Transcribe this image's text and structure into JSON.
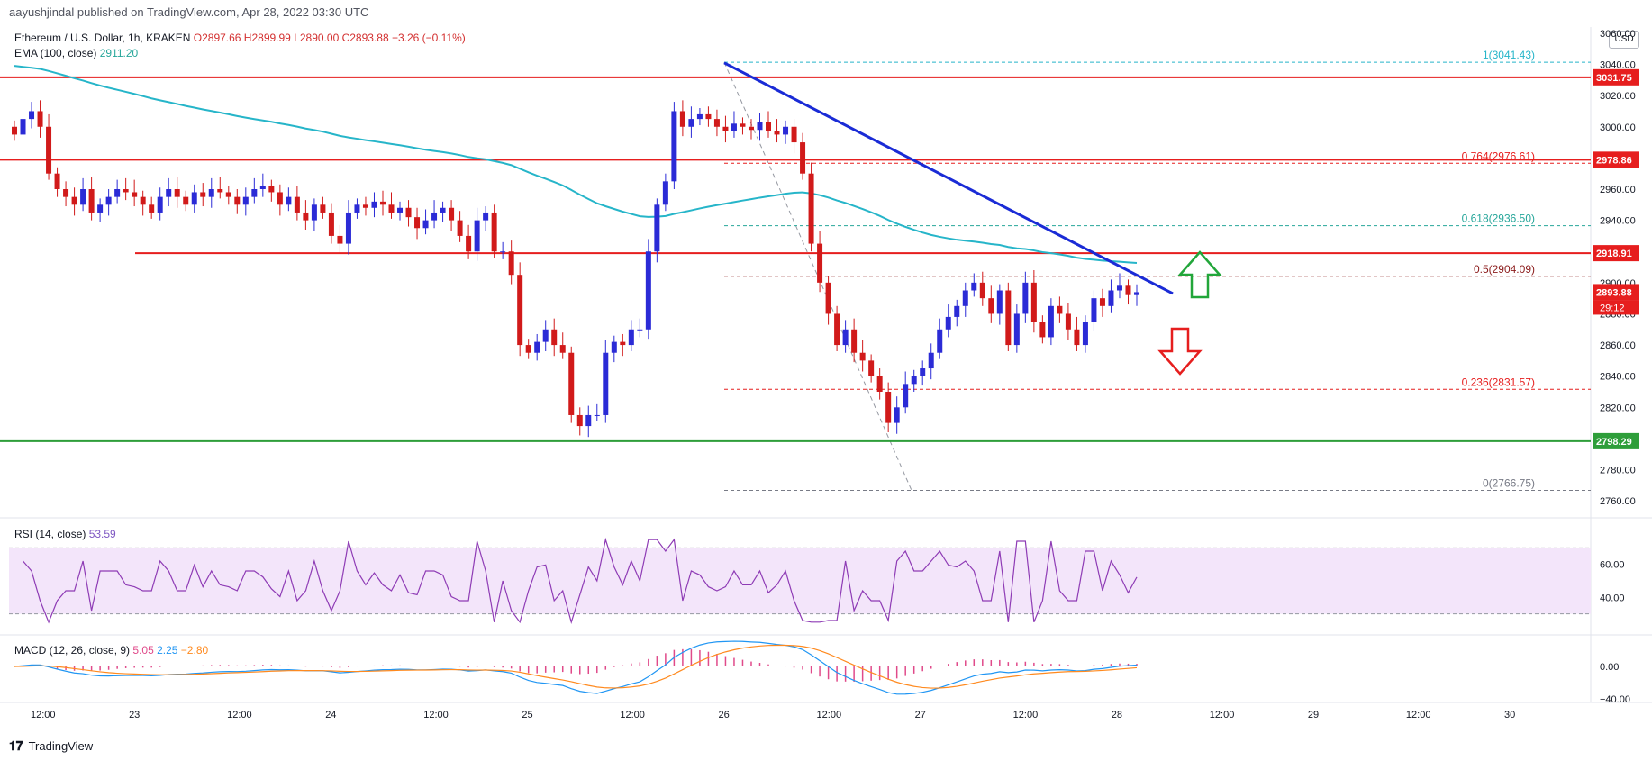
{
  "header": {
    "published": "aayushjindal published on TradingView.com, Apr 28, 2022 03:30 UTC"
  },
  "legend": {
    "symbol": "Ethereum / U.S. Dollar, 1h, KRAKEN",
    "ohlc": "O2897.66  H2899.99  L2890.00  C2893.88  −3.26 (−0.11%)",
    "ema_label": "EMA (100, close)",
    "ema_value": "2911.20",
    "rsi_label": "RSI (14, close)",
    "rsi_value": "53.59",
    "macd_label": "MACD (12, 26, close, 9)",
    "macd_v1": "5.05",
    "macd_v2": "2.25",
    "macd_v3": "−2.80"
  },
  "currency_button": "USD",
  "footer": {
    "brand": "TradingView"
  },
  "colors": {
    "up": "#2b2bd6",
    "down": "#d11a1a",
    "ema": "#26b5c9",
    "resistance": "#e61e1e",
    "support": "#2e9e3a",
    "trend": "#1a2bd6",
    "rsi": "#8e3bb5",
    "macd": "#2196f3",
    "signal": "#ff8a1f",
    "hist": "#e04a8a"
  },
  "price_axis_labels": [
    "3060.00",
    "3040.00",
    "3020.00",
    "3000.00",
    "2980.00",
    "2960.00",
    "2940.00",
    "2920.00",
    "2900.00",
    "2880.00",
    "2860.00",
    "2840.00",
    "2820.00",
    "2800.00",
    "2780.00",
    "2760.00"
  ],
  "price_tags": [
    {
      "label": "3031.75",
      "value": 3031.75,
      "color": "#e61e1e"
    },
    {
      "label": "2978.86",
      "value": 2978.86,
      "color": "#e61e1e"
    },
    {
      "label": "2918.91",
      "value": 2918.91,
      "color": "#e61e1e"
    },
    {
      "label": "2893.88",
      "value": 2893.88,
      "color": "#e61e1e"
    },
    {
      "label": "2798.29",
      "value": 2798.29,
      "color": "#2e9e3a"
    }
  ],
  "countdown": "29:12",
  "fib_levels": [
    {
      "label": "1(3041.43)",
      "value": 3041.43,
      "color": "#26b5c9"
    },
    {
      "label": "0.764(2976.61)",
      "value": 2976.61,
      "color": "#e61e1e"
    },
    {
      "label": "0.618(2936.50)",
      "value": 2936.5,
      "color": "#26a69a"
    },
    {
      "label": "0.5(2904.09)",
      "value": 2904.09,
      "color": "#8b1a1a"
    },
    {
      "label": "0.236(2831.57)",
      "value": 2831.57,
      "color": "#e61e1e"
    },
    {
      "label": "0(2766.75)",
      "value": 2766.75,
      "color": "#787b86"
    }
  ],
  "rsi_axis_labels": [
    "60.00",
    "40.00"
  ],
  "macd_axis_labels": [
    "0.00",
    "−40.00"
  ],
  "x_ticks": [
    "12:00",
    "23",
    "12:00",
    "24",
    "12:00",
    "25",
    "12:00",
    "26",
    "12:00",
    "27",
    "12:00",
    "28",
    "12:00",
    "29",
    "12:00",
    "30"
  ],
  "chart_data": {
    "type": "candlestick",
    "ylim": [
      2752,
      3064
    ],
    "x_axis": "Apr 22 – Apr 30, 2022 (1h)",
    "horizontal_levels": {
      "resistance": [
        3031.75,
        2978.86,
        2918.91
      ],
      "support": [
        2798.29
      ]
    },
    "trendline": {
      "from": [
        3041,
        "Apr 26 00:00"
      ],
      "to": [
        2893,
        "Apr 28 ~09:00"
      ]
    },
    "candles_close": [
      2995,
      3005,
      3010,
      3000,
      2970,
      2960,
      2955,
      2950,
      2960,
      2945,
      2950,
      2955,
      2960,
      2958,
      2955,
      2950,
      2945,
      2955,
      2960,
      2955,
      2950,
      2958,
      2955,
      2960,
      2958,
      2955,
      2950,
      2955,
      2960,
      2962,
      2958,
      2950,
      2955,
      2945,
      2940,
      2950,
      2945,
      2930,
      2925,
      2945,
      2950,
      2948,
      2952,
      2950,
      2945,
      2948,
      2942,
      2935,
      2940,
      2945,
      2948,
      2940,
      2930,
      2920,
      2940,
      2945,
      2920,
      2920,
      2905,
      2860,
      2855,
      2862,
      2870,
      2860,
      2855,
      2815,
      2808,
      2815,
      2815,
      2855,
      2862,
      2860,
      2870,
      2870,
      2920,
      2950,
      2965,
      3010,
      3000,
      3005,
      3008,
      3005,
      3000,
      2997,
      3002,
      3000,
      2998,
      3003,
      2997,
      2995,
      3000,
      2990,
      2970,
      2925,
      2900,
      2880,
      2860,
      2870,
      2855,
      2850,
      2840,
      2830,
      2810,
      2820,
      2835,
      2840,
      2845,
      2855,
      2870,
      2878,
      2885,
      2895,
      2900,
      2890,
      2880,
      2895,
      2860,
      2880,
      2900,
      2875,
      2865,
      2885,
      2880,
      2870,
      2860,
      2875,
      2890,
      2885,
      2895,
      2898,
      2892,
      2893.88
    ]
  }
}
